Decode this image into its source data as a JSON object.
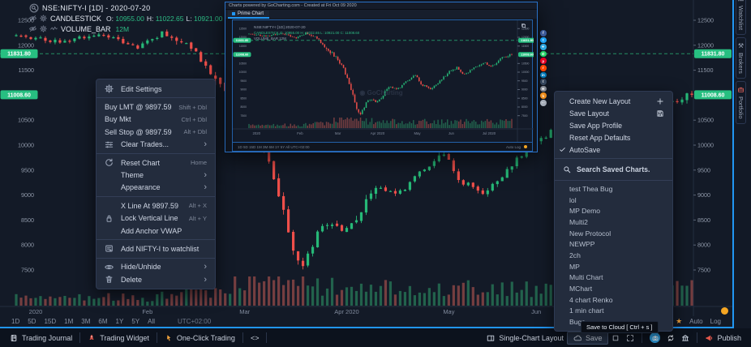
{
  "app": {
    "accent": "#2196f3"
  },
  "header": {
    "symbol_line": "NSE:NIFTY-I [1D] - 2020-07-20",
    "series_label": "CANDLESTICK",
    "ohlc": [
      {
        "k": "O:",
        "v": "10955.00"
      },
      {
        "k": "H:",
        "v": "11022.65"
      },
      {
        "k": "L:",
        "v": "10921.00"
      },
      {
        "k": "C:",
        "v": "11008.60"
      }
    ],
    "volume_label": "VOLUME_BAR",
    "volume_value": "12M"
  },
  "price_axis": {
    "ticks": [
      12500,
      12000,
      11500,
      10500,
      10000,
      9500,
      9000,
      8500,
      8000,
      7500
    ],
    "badges": [
      {
        "label": "11831.80",
        "price": 11831.8
      },
      {
        "label": "11008.60",
        "price": 11008.6
      }
    ],
    "text_color": "#8f98a8",
    "badge_color": "#27bf81"
  },
  "x_axis": {
    "labels": [
      {
        "t": "2020",
        "d": 4
      },
      {
        "t": "Feb",
        "d": 27
      },
      {
        "t": "Mar",
        "d": 47
      },
      {
        "t": "Apr 2020",
        "d": 68
      },
      {
        "t": "May",
        "d": 89
      },
      {
        "t": "Jun",
        "d": 107
      },
      {
        "t": "Jul 2020",
        "d": 127
      }
    ]
  },
  "chart": {
    "type": "candlestick",
    "symbol": "NSE:NIFTY-I",
    "interval": "1D",
    "days": 140,
    "anchors": [
      [
        0,
        12200
      ],
      [
        8,
        12080
      ],
      [
        18,
        12230
      ],
      [
        25,
        11950
      ],
      [
        30,
        12240
      ],
      [
        36,
        11980
      ],
      [
        41,
        11300
      ],
      [
        46,
        10900
      ],
      [
        50,
        10250
      ],
      [
        54,
        9050
      ],
      [
        57,
        7900
      ],
      [
        59,
        7610
      ],
      [
        63,
        8450
      ],
      [
        68,
        8300
      ],
      [
        74,
        9150
      ],
      [
        79,
        9050
      ],
      [
        84,
        9550
      ],
      [
        88,
        9850
      ],
      [
        91,
        9300
      ],
      [
        96,
        9050
      ],
      [
        101,
        9500
      ],
      [
        106,
        10050
      ],
      [
        110,
        10250
      ],
      [
        114,
        9850
      ],
      [
        119,
        10250
      ],
      [
        124,
        10550
      ],
      [
        128,
        10300
      ],
      [
        133,
        10750
      ],
      [
        137,
        10950
      ],
      [
        139,
        11008.6
      ]
    ],
    "dashed_price": 11831.8,
    "current_price": 11008.6,
    "colors": {
      "up": "#26b877",
      "down": "#ef4f4a",
      "vol_up": "rgba(48,158,108,0.55)",
      "vol_down": "rgba(198,92,86,0.55)",
      "dashed": "#2abf7f"
    }
  },
  "context_menu": {
    "sections": [
      [
        {
          "label": "Edit Settings",
          "icon": "gear"
        }
      ],
      [
        {
          "label": "Buy LMT @ 9897.59",
          "shortcut": "Shift + Dbl",
          "flush": true
        },
        {
          "label": "Buy Mkt",
          "shortcut": "Ctrl + Dbl",
          "flush": true
        },
        {
          "label": "Sell Stop @ 9897.59",
          "shortcut": "Alt + Dbl",
          "flush": true
        },
        {
          "label": "Clear Trades...",
          "icon": "sliders",
          "submenu": true
        }
      ],
      [
        {
          "label": "Reset Chart",
          "icon": "reset",
          "shortcut": "Home"
        },
        {
          "label": "Theme",
          "submenu": true
        },
        {
          "label": "Appearance",
          "submenu": true
        }
      ],
      [
        {
          "label": "X Line At 9897.59",
          "shortcut": "Alt + X"
        },
        {
          "label": "Lock Vertical Line",
          "icon": "lock",
          "shortcut": "Alt + Y"
        },
        {
          "label": "Add Anchor VWAP"
        }
      ],
      [
        {
          "label": "Add NIFTY-I to watchlist",
          "icon": "watchlist"
        }
      ],
      [
        {
          "label": "Hide/Unhide",
          "icon": "eye",
          "submenu": true
        },
        {
          "label": "Delete",
          "icon": "trash",
          "submenu": true
        }
      ]
    ]
  },
  "save_menu": {
    "items": [
      {
        "label": "Create New Layout",
        "right_icon": "plus"
      },
      {
        "label": "Save Layout",
        "right_icon": "floppy"
      },
      {
        "label": "Save App Profile"
      },
      {
        "label": "Reset App Defaults"
      },
      {
        "label": "AutoSave",
        "checked": true
      }
    ],
    "search_placeholder": "Search Saved Charts.",
    "saved_charts": [
      "test Thea Bug",
      "lol",
      "MP Demo",
      "Multi2",
      "New Protocol",
      "NEWPP",
      "2ch",
      "MP",
      "Multi Chart",
      "MChart",
      "4 chart Renko",
      "1 min chart",
      "Bugs"
    ]
  },
  "popup": {
    "titlebar": "Charts powered by GoCharting.com - Created at Fri Oct 09 2020",
    "tab": "Prime Chart",
    "watermark": "GoCharting",
    "legend_symbol": "NSE:NIFTY-I [1D] 2020-07-20",
    "legend_series": "CANDLESTICK O: 10955.00 H: 11022.65 L: 10921.00 C: 11008.60",
    "legend_volume": "VOLUME_BAR 12M",
    "footer_left": "1D  5D  15D  1M  3M  6M  1Y  5Y  All      UTC+02:00",
    "footer_right": "Auto   Log"
  },
  "share": [
    {
      "name": "facebook",
      "color": "#3b5998",
      "glyph": "f"
    },
    {
      "name": "twitter",
      "color": "#1da1f2",
      "glyph": "t"
    },
    {
      "name": "telegram",
      "color": "#2ca5e0",
      "glyph": "✈"
    },
    {
      "name": "whatsapp",
      "color": "#25d366",
      "glyph": "✆"
    },
    {
      "name": "pinterest",
      "color": "#e60023",
      "glyph": "p"
    },
    {
      "name": "reddit",
      "color": "#ff4500",
      "glyph": "r"
    },
    {
      "name": "linkedin",
      "color": "#0077b5",
      "glyph": "in"
    },
    {
      "name": "tumblr",
      "color": "#35465c",
      "glyph": "t"
    },
    {
      "name": "email",
      "color": "#848a93",
      "glyph": "✉"
    },
    {
      "name": "buffer",
      "color": "#f5921e",
      "glyph": "b"
    },
    {
      "name": "more",
      "color": "#aeb6c2",
      "glyph": "⋯"
    }
  ],
  "timeframe_bar": {
    "ranges": [
      "1D",
      "5D",
      "15D",
      "1M",
      "3M",
      "6M",
      "1Y",
      "5Y",
      "All"
    ],
    "timezone": "UTC+02:00",
    "right_labels": [
      "Auto",
      "Log"
    ]
  },
  "status_bar": {
    "left": [
      {
        "icon": "journal",
        "label": "Trading Journal",
        "icon_color": "#d8dee9"
      },
      {
        "icon": "rocket",
        "label": "Trading Widget",
        "icon_color": "#e0564a"
      },
      {
        "icon": "pointer",
        "label": "One-Click Trading",
        "icon_color": "#f0a23c"
      },
      {
        "label": "<>"
      }
    ],
    "right": [
      {
        "icon": "layout",
        "label": "Single-Chart Layout",
        "icon_color": "#c3cbd8"
      },
      {
        "icon": "cloud",
        "label": "Save",
        "boxed": true,
        "icon_color": "#c3cbd8"
      },
      {
        "icon": "square",
        "icon_color": "#c3cbd8"
      },
      {
        "icon": "expand",
        "icon_color": "#c3cbd8"
      },
      {
        "sep": true
      },
      {
        "icon": "camera",
        "circle": true,
        "icon_color": "#ffffff"
      },
      {
        "icon": "refresh",
        "icon_color": "#e8edf5"
      },
      {
        "icon": "columns",
        "icon_color": "#c3cbd8"
      },
      {
        "sep": true
      },
      {
        "icon": "megaphone",
        "label": "Publish",
        "icon_color": "#e0564a"
      }
    ],
    "tooltip": "Save to Cloud [ Ctrl + s ]"
  },
  "side_tabs": [
    {
      "label": "Watchlist",
      "icon": "list",
      "icon_color": "#9aa4b6"
    },
    {
      "label": "Brokers",
      "icon": "hammer",
      "icon_color": "#9aa4b6"
    },
    {
      "label": "Portfolio",
      "icon": "briefcase",
      "icon_color": "#cf5c56"
    }
  ]
}
